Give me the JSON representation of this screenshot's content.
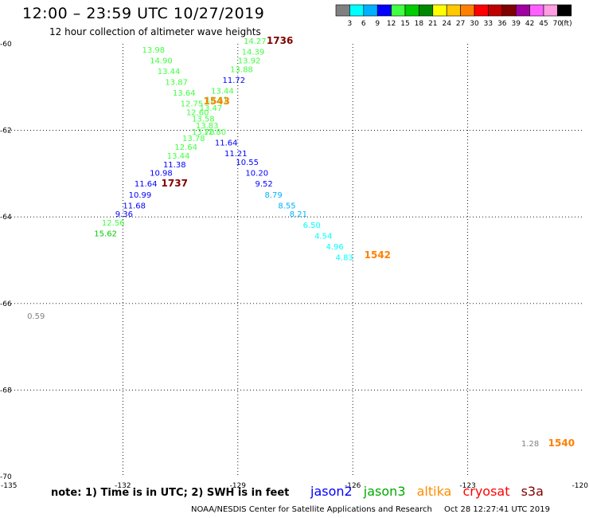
{
  "title": "12:00 – 23:59 UTC 10/27/2019",
  "subtitle": "12 hour collection of altimeter wave heights",
  "colorbar": {
    "colors": [
      "#808080",
      "#00ffff",
      "#00b0ff",
      "#0000ff",
      "#40ff40",
      "#00cc00",
      "#008800",
      "#ffff00",
      "#ffc800",
      "#ff8000",
      "#ff0000",
      "#c00000",
      "#800000",
      "#a000a0",
      "#ff60ff",
      "#ff9ee0",
      "#000000"
    ],
    "labels": [
      "3",
      "6",
      "9",
      "12",
      "15",
      "18",
      "21",
      "24",
      "27",
      "30",
      "33",
      "36",
      "39",
      "42",
      "45",
      "70"
    ],
    "unit": "(ft)"
  },
  "axes": {
    "lat_labels": [
      "-60",
      "-62",
      "-64",
      "-66",
      "-68",
      "-70"
    ],
    "lon_labels": [
      "-135",
      "-132",
      "-129",
      "-126",
      "-123",
      "-120"
    ]
  },
  "map_data": {
    "text_color_default": "#000000",
    "tracks": [
      {
        "satellite": "jason3-descending",
        "points": [
          {
            "lon": -131.5,
            "lat": -60.2,
            "v": "13.98",
            "c": "#40ff40"
          },
          {
            "lon": -131.3,
            "lat": -60.45,
            "v": "14.90",
            "c": "#40ff40"
          },
          {
            "lon": -131.1,
            "lat": -60.7,
            "v": "13.44",
            "c": "#40ff40"
          },
          {
            "lon": -130.9,
            "lat": -60.95,
            "v": "13.87",
            "c": "#40ff40"
          },
          {
            "lon": -130.7,
            "lat": -61.2,
            "v": "13.64",
            "c": "#40ff40"
          },
          {
            "lon": -130.5,
            "lat": -61.45,
            "v": "12.75",
            "c": "#40ff40"
          },
          {
            "lon": -130.35,
            "lat": -61.65,
            "v": "12.60",
            "c": "#40ff40"
          },
          {
            "lon": -130.2,
            "lat": -61.8,
            "v": "13.58",
            "c": "#40ff40"
          },
          {
            "lon": -130.1,
            "lat": -61.95,
            "v": "13.83",
            "c": "#40ff40"
          },
          {
            "lon": -130.2,
            "lat": -62.1,
            "v": "13.70",
            "c": "#40ff40"
          },
          {
            "lon": -130.45,
            "lat": -62.25,
            "v": "13.78",
            "c": "#40ff40"
          },
          {
            "lon": -130.65,
            "lat": -62.45,
            "v": "12.64",
            "c": "#40ff40"
          },
          {
            "lon": -130.85,
            "lat": -62.65,
            "v": "13.44",
            "c": "#40ff40"
          }
        ]
      },
      {
        "satellite": "jason2-descending",
        "points": [
          {
            "lon": -130.95,
            "lat": -62.85,
            "v": "11.38",
            "c": "#0000ff"
          },
          {
            "lon": -131.3,
            "lat": -63.05,
            "v": "10.98",
            "c": "#0000ff"
          },
          {
            "lon": -131.7,
            "lat": -63.3,
            "v": "11.64",
            "c": "#0000ff"
          },
          {
            "lon": -131.85,
            "lat": -63.55,
            "v": "10.99",
            "c": "#0000ff"
          },
          {
            "lon": -132.0,
            "lat": -63.8,
            "v": "11.68",
            "c": "#0000ff"
          },
          {
            "lon": -132.2,
            "lat": -64.0,
            "v": "9.36",
            "c": "#0000ff"
          }
        ]
      },
      {
        "satellite": "jason3-tail",
        "points": [
          {
            "lon": -132.55,
            "lat": -64.2,
            "v": "12.56",
            "c": "#40ff40"
          },
          {
            "lon": -132.75,
            "lat": -64.45,
            "v": "15.62",
            "c": "#00cc00"
          }
        ]
      },
      {
        "satellite": "altika-ascending",
        "points": [
          {
            "lon": -128.85,
            "lat": -60.0,
            "v": "14.27",
            "c": "#40ff40"
          },
          {
            "lon": -128.9,
            "lat": -60.25,
            "v": "14.39",
            "c": "#40ff40"
          },
          {
            "lon": -129.0,
            "lat": -60.45,
            "v": "13.92",
            "c": "#40ff40"
          },
          {
            "lon": -129.2,
            "lat": -60.65,
            "v": "13.88",
            "c": "#40ff40"
          },
          {
            "lon": -129.4,
            "lat": -60.9,
            "v": "11.72",
            "c": "#0000ff"
          },
          {
            "lon": -129.7,
            "lat": -61.15,
            "v": "13.44",
            "c": "#40ff40"
          },
          {
            "lon": -129.85,
            "lat": -61.35,
            "v": "12.61",
            "c": "#40ff40"
          },
          {
            "lon": -130.0,
            "lat": -61.55,
            "v": "13.47",
            "c": "#40ff40"
          },
          {
            "lon": -129.9,
            "lat": -62.1,
            "v": "12.80",
            "c": "#40ff40"
          }
        ]
      },
      {
        "satellite": "jason2-ascending",
        "points": [
          {
            "lon": -129.6,
            "lat": -62.35,
            "v": "11.64",
            "c": "#0000ff"
          },
          {
            "lon": -129.35,
            "lat": -62.6,
            "v": "11.21",
            "c": "#0000ff"
          },
          {
            "lon": -129.05,
            "lat": -62.8,
            "v": "10.55",
            "c": "#0000ff"
          },
          {
            "lon": -128.8,
            "lat": -63.05,
            "v": "10.20",
            "c": "#0000ff"
          },
          {
            "lon": -128.55,
            "lat": -63.3,
            "v": "9.52",
            "c": "#0000ff"
          }
        ]
      },
      {
        "satellite": "jason2-cyan",
        "points": [
          {
            "lon": -128.3,
            "lat": -63.55,
            "v": "8.79",
            "c": "#00b0ff"
          },
          {
            "lon": -127.95,
            "lat": -63.8,
            "v": "8.55",
            "c": "#00b0ff"
          },
          {
            "lon": -127.65,
            "lat": -64.0,
            "v": "8.21",
            "c": "#00b0ff"
          },
          {
            "lon": -127.3,
            "lat": -64.25,
            "v": "6.50",
            "c": "#00ffff"
          },
          {
            "lon": -127.0,
            "lat": -64.5,
            "v": "4.54",
            "c": "#00ffff"
          },
          {
            "lon": -126.7,
            "lat": -64.75,
            "v": "4.96",
            "c": "#00ffff"
          },
          {
            "lon": -126.45,
            "lat": -65.0,
            "v": "4.83",
            "c": "#00ffff"
          }
        ]
      },
      {
        "satellite": "misc",
        "points": [
          {
            "lon": -134.5,
            "lat": -66.35,
            "v": "0.59",
            "c": "#808080"
          },
          {
            "lon": -121.6,
            "lat": -69.3,
            "v": "1.28",
            "c": "#808080"
          }
        ]
      }
    ],
    "time_labels": [
      {
        "lon": -128.25,
        "lat": -60.0,
        "t": "1736",
        "c": "#800000"
      },
      {
        "lon": -131.0,
        "lat": -63.3,
        "t": "1737",
        "c": "#800000"
      },
      {
        "lon": -129.9,
        "lat": -61.4,
        "t": "1543",
        "c": "#ff8000"
      },
      {
        "lon": -125.7,
        "lat": -64.95,
        "t": "1542",
        "c": "#ff8000"
      },
      {
        "lon": -120.9,
        "lat": -69.3,
        "t": "1540",
        "c": "#ff8000"
      }
    ]
  },
  "note": "note:  1) Time is in UTC; 2) SWH is in feet",
  "legend": [
    {
      "label": "jason2",
      "color": "#0000ff"
    },
    {
      "label": "jason3",
      "color": "#00aa00"
    },
    {
      "label": "altika",
      "color": "#ff8c00"
    },
    {
      "label": "cryosat",
      "color": "#ff0000"
    },
    {
      "label": "s3a",
      "color": "#800000"
    }
  ],
  "credit": {
    "source": "NOAA/NESDIS Center for Satellite Applications and Research",
    "timestamp": "Oct 28 12:27:41 UTC 2019"
  }
}
